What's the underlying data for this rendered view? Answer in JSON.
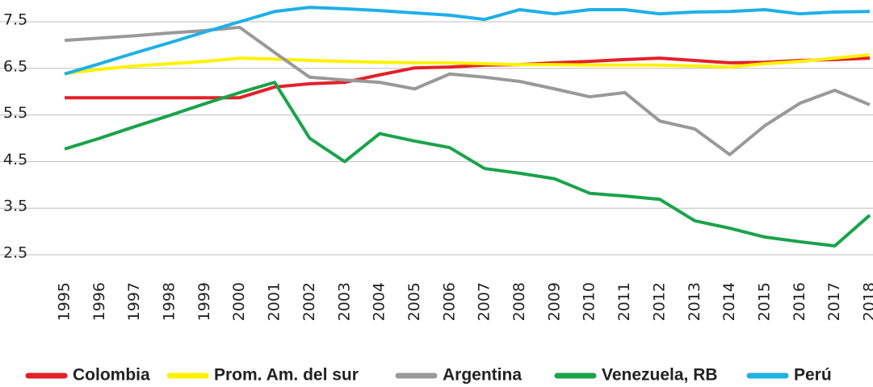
{
  "chart_data": {
    "type": "line",
    "x": [
      1995,
      1996,
      1997,
      1998,
      1999,
      2000,
      2001,
      2002,
      2003,
      2004,
      2005,
      2006,
      2007,
      2008,
      2009,
      2010,
      2011,
      2012,
      2013,
      2014,
      2015,
      2016,
      2017,
      2018
    ],
    "ylim": [
      2.5,
      7.5
    ],
    "yticks": [
      2.5,
      3.5,
      4.5,
      5.5,
      6.5,
      7.5
    ],
    "grid": true,
    "legend": "bottom",
    "series": [
      {
        "name": "Colombia",
        "color": "#e4202a",
        "values": [
          5.87,
          5.87,
          5.87,
          5.87,
          5.87,
          5.87,
          6.1,
          6.17,
          6.2,
          6.36,
          6.51,
          6.53,
          6.57,
          6.58,
          6.62,
          6.65,
          6.69,
          6.72,
          6.67,
          6.62,
          6.63,
          6.67,
          6.69,
          6.72
        ]
      },
      {
        "name": "Prom. Am. del sur",
        "color": "#fff200",
        "values": [
          6.39,
          6.48,
          6.55,
          6.6,
          6.65,
          6.72,
          6.7,
          6.67,
          6.65,
          6.63,
          6.62,
          6.62,
          6.6,
          6.58,
          6.58,
          6.57,
          6.57,
          6.57,
          6.55,
          6.53,
          6.6,
          6.65,
          6.72,
          6.79
        ]
      },
      {
        "name": "Argentina",
        "color": "#999999",
        "values": [
          7.1,
          7.15,
          7.2,
          7.26,
          7.31,
          7.38,
          6.84,
          6.31,
          6.25,
          6.2,
          6.06,
          6.38,
          6.31,
          6.22,
          6.06,
          5.89,
          5.98,
          5.37,
          5.2,
          4.65,
          5.27,
          5.75,
          6.03,
          5.72
        ]
      },
      {
        "name": "Venezuela, RB",
        "color": "#1aa34a",
        "values": [
          4.77,
          5.0,
          5.25,
          5.49,
          5.74,
          5.98,
          6.2,
          5.0,
          4.5,
          5.1,
          4.94,
          4.8,
          4.35,
          4.25,
          4.13,
          3.82,
          3.76,
          3.69,
          3.23,
          3.07,
          2.88,
          2.78,
          2.69,
          3.35
        ]
      },
      {
        "name": "Perú",
        "color": "#1fb0e6",
        "values": [
          6.38,
          6.6,
          6.83,
          7.05,
          7.28,
          7.5,
          7.72,
          7.81,
          7.78,
          7.74,
          7.69,
          7.64,
          7.55,
          7.76,
          7.67,
          7.76,
          7.76,
          7.67,
          7.71,
          7.72,
          7.76,
          7.67,
          7.71,
          7.72
        ]
      }
    ]
  }
}
